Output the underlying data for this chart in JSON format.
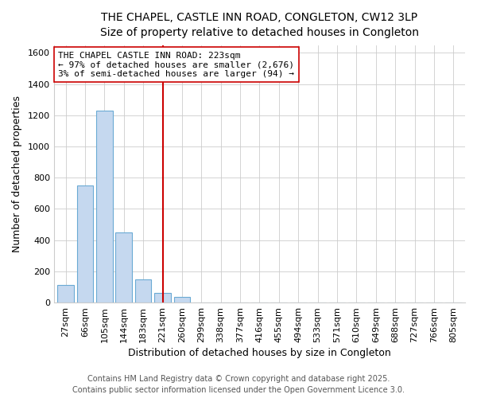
{
  "title_line1": "THE CHAPEL, CASTLE INN ROAD, CONGLETON, CW12 3LP",
  "title_line2": "Size of property relative to detached houses in Congleton",
  "xlabel": "Distribution of detached houses by size in Congleton",
  "ylabel": "Number of detached properties",
  "footer_line1": "Contains HM Land Registry data © Crown copyright and database right 2025.",
  "footer_line2": "Contains public sector information licensed under the Open Government Licence 3.0.",
  "categories": [
    "27sqm",
    "66sqm",
    "105sqm",
    "144sqm",
    "183sqm",
    "221sqm",
    "260sqm",
    "299sqm",
    "338sqm",
    "377sqm",
    "416sqm",
    "455sqm",
    "494sqm",
    "533sqm",
    "571sqm",
    "610sqm",
    "649sqm",
    "688sqm",
    "727sqm",
    "766sqm",
    "805sqm"
  ],
  "values": [
    115,
    750,
    1230,
    450,
    150,
    60,
    35,
    0,
    0,
    0,
    0,
    0,
    0,
    0,
    0,
    0,
    0,
    0,
    0,
    0,
    0
  ],
  "subject_line": "THE CHAPEL CASTLE INN ROAD: 223sqm",
  "annotation_line2": "← 97% of detached houses are smaller (2,676)",
  "annotation_line3": "3% of semi-detached houses are larger (94) →",
  "vline_index": 5,
  "bar_color": "#c5d8ef",
  "bar_edge_color": "#6aaad4",
  "vline_color": "#cc0000",
  "ylim": [
    0,
    1650
  ],
  "yticks": [
    0,
    200,
    400,
    600,
    800,
    1000,
    1200,
    1400,
    1600
  ],
  "annotation_box_facecolor": "#ffffff",
  "annotation_box_edgecolor": "#cc0000",
  "bg_color": "#ffffff",
  "plot_bg_color": "#ffffff",
  "grid_color": "#cccccc",
  "title_fontsize": 10,
  "subtitle_fontsize": 9,
  "xlabel_fontsize": 9,
  "ylabel_fontsize": 9,
  "tick_fontsize": 8,
  "footer_fontsize": 7
}
